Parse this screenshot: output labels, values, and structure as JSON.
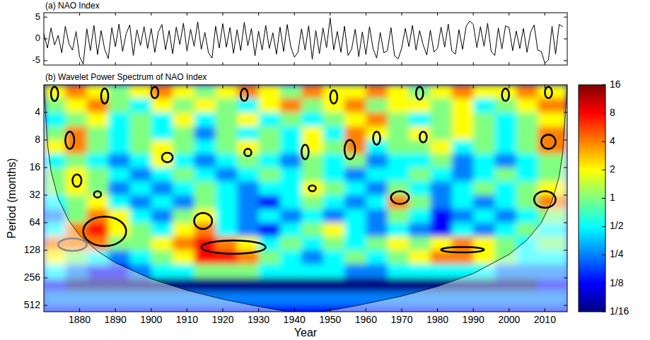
{
  "chart_data": [
    {
      "type": "line",
      "title": "(a) NAO Index",
      "color": "#000000",
      "tick_labels": "y",
      "x": [
        1870,
        1871,
        1872,
        1873,
        1874,
        1875,
        1876,
        1877,
        1878,
        1879,
        1880,
        1881,
        1882,
        1883,
        1884,
        1885,
        1886,
        1887,
        1888,
        1889,
        1890,
        1891,
        1892,
        1893,
        1894,
        1895,
        1896,
        1897,
        1898,
        1899,
        1900,
        1901,
        1902,
        1903,
        1904,
        1905,
        1906,
        1907,
        1908,
        1909,
        1910,
        1911,
        1912,
        1913,
        1914,
        1915,
        1916,
        1917,
        1918,
        1919,
        1920,
        1921,
        1922,
        1923,
        1924,
        1925,
        1926,
        1927,
        1928,
        1929,
        1930,
        1931,
        1932,
        1933,
        1934,
        1935,
        1936,
        1937,
        1938,
        1939,
        1940,
        1941,
        1942,
        1943,
        1944,
        1945,
        1946,
        1947,
        1948,
        1949,
        1950,
        1951,
        1952,
        1953,
        1954,
        1955,
        1956,
        1957,
        1958,
        1959,
        1960,
        1961,
        1962,
        1963,
        1964,
        1965,
        1966,
        1967,
        1968,
        1969,
        1970,
        1971,
        1972,
        1973,
        1974,
        1975,
        1976,
        1977,
        1978,
        1979,
        1980,
        1981,
        1982,
        1983,
        1984,
        1985,
        1986,
        1987,
        1988,
        1989,
        1990,
        1991,
        1992,
        1993,
        1994,
        1995,
        1996,
        1997,
        1998,
        1999,
        2000,
        2001,
        2002,
        2003,
        2004,
        2005,
        2006,
        2007,
        2008,
        2009,
        2010,
        2011,
        2012,
        2013,
        2014,
        2015
      ],
      "values": [
        1.2,
        -2.1,
        2.5,
        -1.4,
        0.8,
        -3.2,
        2.9,
        -1.1,
        -2.6,
        1.7,
        -4.1,
        -5.8,
        2.3,
        -2.7,
        3.1,
        -3.6,
        1.9,
        -2.4,
        -4.5,
        2.6,
        -1.8,
        3.4,
        -2.9,
        1.2,
        3.2,
        -3.8,
        2.1,
        -1.5,
        2.8,
        -2.2,
        2.4,
        -3.1,
        1.6,
        3.3,
        -2.5,
        1.9,
        -3.4,
        2.7,
        -1.3,
        3.6,
        -2.8,
        2.2,
        -1.7,
        3.9,
        -2.4,
        1.5,
        -3.2,
        -4.4,
        2.9,
        -2.1,
        3.5,
        -1.9,
        2.6,
        -3.3,
        2.1,
        -2.7,
        3.8,
        -1.6,
        2.4,
        -3.9,
        1.8,
        -2.6,
        3.1,
        -2.2,
        1.4,
        -3.5,
        2.7,
        -2.9,
        3.3,
        -1.8,
        -4.2,
        -3.1,
        2.3,
        -2.6,
        3.0,
        -4.7,
        1.9,
        -3.4,
        2.5,
        -2.0,
        4.8,
        -2.5,
        1.7,
        -3.1,
        2.9,
        -3.8,
        -2.4,
        2.2,
        -4.1,
        1.6,
        -3.6,
        2.8,
        -2.3,
        -4.4,
        1.5,
        -3.2,
        -2.7,
        2.6,
        -3.9,
        -4.6,
        -2.1,
        2.4,
        -1.8,
        3.1,
        -2.6,
        1.9,
        -1.4,
        -3.7,
        2.0,
        -3.0,
        -2.2,
        2.7,
        -1.9,
        3.4,
        -2.8,
        -3.5,
        2.1,
        -2.4,
        2.9,
        4.1,
        3.3,
        -2.0,
        2.8,
        -1.7,
        3.6,
        -2.9,
        -3.8,
        2.5,
        -2.3,
        3.0,
        2.6,
        -2.7,
        1.8,
        -2.2,
        2.4,
        -3.1,
        1.5,
        3.2,
        -2.6,
        -2.9,
        -5.6,
        -4.8,
        2.9,
        -3.5,
        3.3,
        2.8
      ],
      "xlim": [
        1870,
        2016.25
      ],
      "xticks": [
        1880,
        1890,
        1900,
        1910,
        1920,
        1930,
        1940,
        1950,
        1960,
        1970,
        1980,
        1990,
        2000,
        2010
      ],
      "ylim": [
        -6,
        6
      ],
      "yticks": [
        -5,
        0,
        5
      ]
    },
    {
      "type": "heatmap",
      "title": "(b) Wavelet Power Spectrum of NAO Index",
      "x_label": "Year",
      "y_label": "Period (months)",
      "log": "y",
      "xlim": [
        1870,
        2016.25
      ],
      "xticks": [
        1880,
        1890,
        1900,
        1910,
        1920,
        1930,
        1940,
        1950,
        1960,
        1970,
        1980,
        1990,
        2000,
        2010
      ],
      "ylim": [
        2,
        600
      ],
      "yticks": [
        4,
        8,
        16,
        32,
        64,
        128,
        256,
        512
      ],
      "x_edges": [
        1870,
        1876,
        1882,
        1888,
        1894,
        1900,
        1906,
        1912,
        1918,
        1924,
        1930,
        1936,
        1942,
        1948,
        1954,
        1960,
        1966,
        1972,
        1978,
        1984,
        1990,
        1996,
        2002,
        2008,
        2016.25
      ],
      "period_edges": [
        2,
        2.8,
        4,
        5.7,
        8,
        11.3,
        16,
        22.6,
        32,
        45.3,
        64,
        90.5,
        128,
        181,
        256,
        362,
        512,
        600
      ],
      "cells": [
        [
          2,
          4,
          2,
          1,
          2,
          4,
          2,
          1,
          2,
          4,
          2,
          1,
          4,
          2,
          2,
          4,
          2,
          1,
          2,
          4,
          2,
          2,
          4,
          2
        ],
        [
          1,
          2,
          4,
          1,
          0.5,
          2,
          1,
          2,
          1,
          0.5,
          2,
          4,
          1,
          2,
          4,
          1,
          2,
          2,
          1,
          2,
          0.5,
          1,
          2,
          4
        ],
        [
          0.5,
          1,
          2,
          0.5,
          1,
          0.5,
          2,
          0.5,
          1,
          2,
          0.5,
          1,
          0.5,
          1,
          2,
          4,
          1,
          0.5,
          1,
          2,
          1,
          0.5,
          1,
          2
        ],
        [
          1,
          4,
          1,
          0.5,
          1,
          0.5,
          1,
          0.25,
          1,
          0.5,
          1,
          0.5,
          2,
          0.5,
          4,
          2,
          1,
          2,
          1,
          2,
          1,
          0.5,
          1,
          4
        ],
        [
          2,
          4,
          1,
          0.5,
          1,
          2,
          1,
          0.5,
          1,
          2,
          1,
          0.5,
          2,
          1,
          4,
          0.5,
          1,
          1,
          2,
          0.5,
          1,
          0.5,
          1,
          4
        ],
        [
          0.5,
          1,
          0.5,
          0.25,
          0.5,
          2,
          0.5,
          0.25,
          0.5,
          1,
          0.5,
          0.25,
          1,
          0.5,
          1,
          0.25,
          0.5,
          0.5,
          1,
          0.25,
          0.5,
          0.25,
          0.5,
          1
        ],
        [
          1,
          2,
          1,
          0.5,
          0.25,
          0.5,
          1,
          0.5,
          0.25,
          0.5,
          1,
          0.5,
          1,
          0.5,
          0.25,
          0.5,
          0.5,
          1,
          0.5,
          0.25,
          0.5,
          1,
          0.5,
          1
        ],
        [
          1,
          2,
          1,
          0.25,
          0.5,
          0.25,
          0.5,
          1,
          0.5,
          0.25,
          0.5,
          0.5,
          2,
          1,
          0.5,
          0.25,
          1,
          0.5,
          0.25,
          0.5,
          1,
          0.5,
          1,
          2
        ],
        [
          0.5,
          1,
          2,
          0.5,
          0.25,
          0.5,
          0.25,
          1,
          0.5,
          0.25,
          0.125,
          0.5,
          1,
          0.5,
          0.25,
          0.5,
          4,
          1,
          0.25,
          0.5,
          0.25,
          0.5,
          1,
          4
        ],
        [
          0.25,
          1,
          4,
          2,
          0.5,
          0.25,
          1,
          2,
          0.5,
          0.25,
          0.5,
          0.25,
          0.5,
          0.25,
          0.5,
          0.25,
          1,
          0.5,
          0.125,
          0.25,
          0.5,
          0.25,
          0.5,
          1
        ],
        [
          0.5,
          4,
          8,
          2,
          1,
          0.5,
          2,
          4,
          0.5,
          0.25,
          0.125,
          0.5,
          1,
          2,
          0.5,
          0.25,
          0.5,
          0.25,
          0.125,
          0.5,
          0.25,
          0.5,
          1,
          0.5
        ],
        [
          4,
          4,
          4,
          1,
          1,
          2,
          4,
          8,
          4,
          2,
          0.5,
          1,
          0.5,
          1,
          0.5,
          1,
          2,
          1,
          2,
          4,
          2,
          1,
          0.5,
          1
        ],
        [
          2,
          1,
          0.5,
          0.25,
          0.5,
          1,
          2,
          8,
          8,
          4,
          1,
          0.5,
          0.25,
          0.5,
          1,
          0.5,
          1,
          2,
          4,
          4,
          2,
          1,
          0.5,
          0.5
        ],
        [
          0.5,
          0.25,
          0.125,
          0.125,
          0.25,
          0.5,
          0.5,
          1,
          1,
          1,
          0.5,
          0.5,
          0.5,
          0.5,
          0.25,
          0.25,
          0.5,
          0.5,
          0.5,
          0.5,
          0.5,
          0.25,
          0.25,
          0.25
        ],
        [
          0.125,
          0.0625,
          0.0625,
          0.0625,
          0.0625,
          0.0625,
          0.0625,
          0.0625,
          0.0625,
          0.0625,
          0.0625,
          0.0625,
          0.0625,
          0.0625,
          0.0625,
          0.0625,
          0.0625,
          0.0625,
          0.0625,
          0.0625,
          0.0625,
          0.0625,
          0.0625,
          0.125
        ],
        [
          0.25,
          0.25,
          0.25,
          0.25,
          0.25,
          0.25,
          0.25,
          0.25,
          0.25,
          0.25,
          0.25,
          0.25,
          0.25,
          0.25,
          0.25,
          0.25,
          0.25,
          0.25,
          0.25,
          0.25,
          0.25,
          0.25,
          0.25,
          0.25
        ],
        [
          0.125,
          0.125,
          0.125,
          0.125,
          0.125,
          0.125,
          0.125,
          0.125,
          0.125,
          0.125,
          0.125,
          0.125,
          0.125,
          0.125,
          0.125,
          0.125,
          0.125,
          0.125,
          0.125,
          0.125,
          0.125,
          0.125,
          0.125,
          0.125
        ]
      ],
      "color_range": [
        0.0625,
        16
      ],
      "color_ticks": [
        16,
        8,
        4,
        2,
        1,
        {
          "value": 0.5,
          "label": "1/2"
        },
        {
          "value": 0.25,
          "label": "1/4"
        },
        {
          "value": 0.125,
          "label": "1/8"
        },
        {
          "value": 0.0625,
          "label": "1/16"
        }
      ],
      "coi": {
        "x": [
          1870,
          1871,
          1872,
          1874,
          1877,
          1880,
          1885,
          1890,
          1900,
          1910,
          1920,
          1930,
          1937,
          1943,
          1950,
          1957,
          1970,
          1980,
          1990,
          2000,
          2005,
          2009,
          2012,
          2014,
          2015,
          2016.25
        ],
        "period": [
          2,
          8.8,
          17.5,
          35,
          61,
          88,
          131,
          175,
          263,
          350,
          438,
          526,
          587,
          640,
          580,
          519,
          405,
          318,
          230,
          142,
          99,
          64,
          37,
          20,
          11,
          2
        ]
      },
      "significant_regions": [
        {
          "x": [
            1874,
            1882
          ],
          "period": [
            95,
            130
          ]
        },
        {
          "x": [
            1881,
            1893
          ],
          "period": [
            55,
            115
          ]
        },
        {
          "x": [
            1876,
            1878.5
          ],
          "period": [
            6.5,
            10
          ]
        },
        {
          "x": [
            1878,
            1880.5
          ],
          "period": [
            19,
            26
          ]
        },
        {
          "x": [
            1884,
            1886
          ],
          "period": [
            29,
            34
          ]
        },
        {
          "x": [
            1912,
            1917
          ],
          "period": [
            50,
            75
          ]
        },
        {
          "x": [
            1914,
            1932
          ],
          "period": [
            100,
            140
          ]
        },
        {
          "x": [
            1903,
            1906
          ],
          "period": [
            11,
            14
          ]
        },
        {
          "x": [
            1926,
            1928
          ],
          "period": [
            10,
            12
          ]
        },
        {
          "x": [
            1944,
            1946
          ],
          "period": [
            25,
            29
          ]
        },
        {
          "x": [
            1942,
            1944
          ],
          "period": [
            9,
            13
          ]
        },
        {
          "x": [
            1954,
            1957
          ],
          "period": [
            8,
            13
          ]
        },
        {
          "x": [
            1962,
            1964
          ],
          "period": [
            6.5,
            9
          ]
        },
        {
          "x": [
            1967,
            1972
          ],
          "period": [
            29,
            40
          ]
        },
        {
          "x": [
            1975,
            1977
          ],
          "period": [
            6.5,
            8.5
          ]
        },
        {
          "x": [
            1981,
            1993
          ],
          "period": [
            118,
            135
          ]
        },
        {
          "x": [
            2009,
            2013
          ],
          "period": [
            7,
            10
          ]
        },
        {
          "x": [
            2007,
            2013
          ],
          "period": [
            29,
            44
          ]
        },
        {
          "x": [
            1872,
            1874
          ],
          "period": [
            2.1,
            3
          ]
        },
        {
          "x": [
            1886,
            1888
          ],
          "period": [
            2.2,
            3.2
          ]
        },
        {
          "x": [
            1900,
            1902
          ],
          "period": [
            2.1,
            2.8
          ]
        },
        {
          "x": [
            1925,
            1927
          ],
          "period": [
            2.2,
            3
          ]
        },
        {
          "x": [
            1950,
            1952
          ],
          "period": [
            2.3,
            3.2
          ]
        },
        {
          "x": [
            1974,
            1976
          ],
          "period": [
            2.1,
            2.9
          ]
        },
        {
          "x": [
            1998,
            2000
          ],
          "period": [
            2.2,
            3
          ]
        },
        {
          "x": [
            2010,
            2012
          ],
          "period": [
            2.1,
            2.8
          ]
        }
      ]
    }
  ]
}
